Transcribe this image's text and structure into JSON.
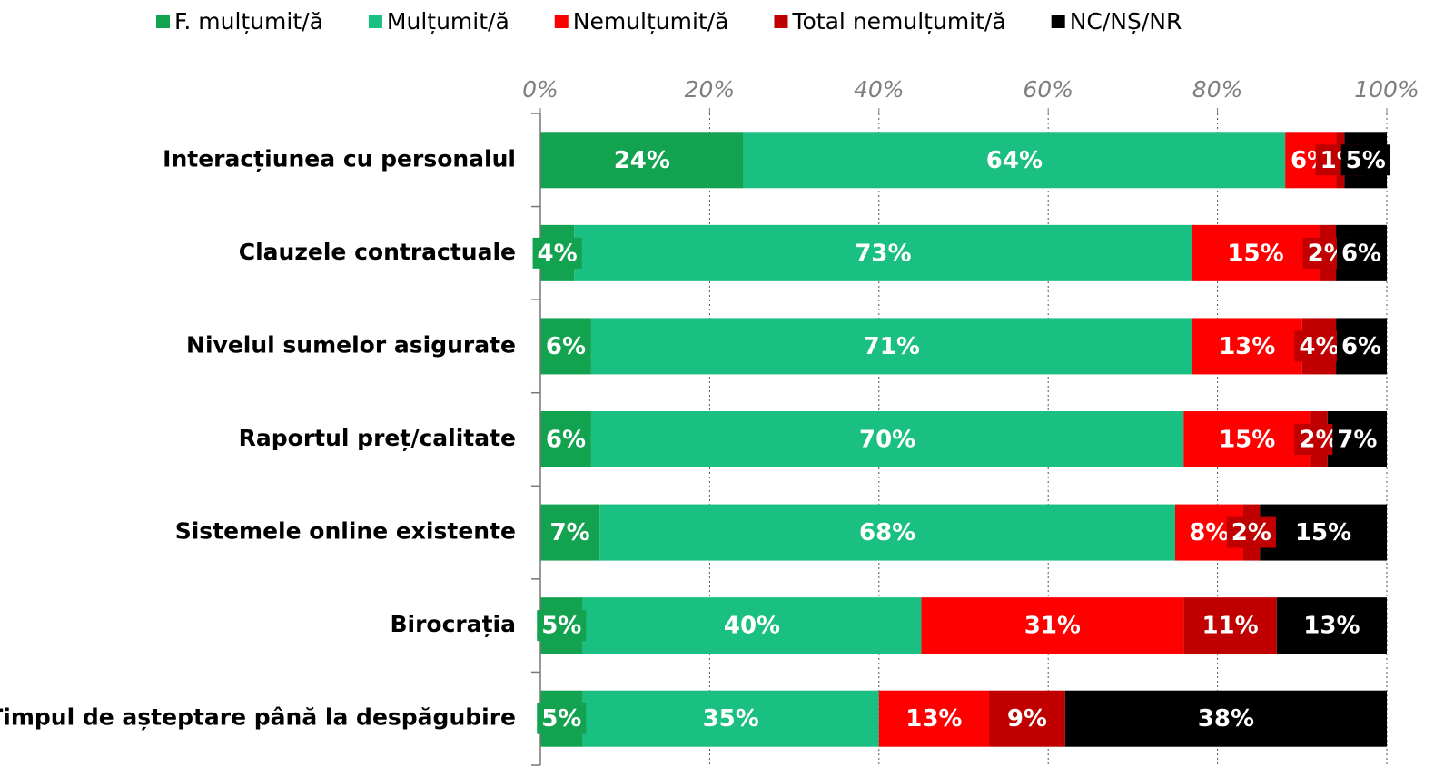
{
  "chart_data": {
    "type": "stacked-bar-horizontal",
    "categories": [
      "Interacțiunea cu personalul",
      "Clauzele contractuale",
      "Nivelul sumelor asigurate",
      "Raportul preț/calitate",
      "Sistemele online existente",
      "Birocrația",
      "Timpul de așteptare până la despăgubire"
    ],
    "series": [
      {
        "name": "F. mulțumit/ă",
        "color": "#13a350",
        "values": [
          24,
          4,
          6,
          6,
          7,
          5,
          5
        ],
        "value_labels": [
          "24%",
          "4%",
          "6%",
          "6%",
          "7%",
          "5%",
          "5%"
        ]
      },
      {
        "name": "Mulțumit/ă",
        "color": "#1abf82",
        "values": [
          64,
          73,
          71,
          70,
          68,
          40,
          35
        ],
        "value_labels": [
          "64%",
          "73%",
          "71%",
          "70%",
          "68%",
          "40%",
          "35%"
        ]
      },
      {
        "name": "Nemulțumit/ă",
        "color": "#ff0000",
        "values": [
          6,
          15,
          13,
          15,
          8,
          31,
          13
        ],
        "value_labels": [
          "6%",
          "15%",
          "13%",
          "15%",
          "8%",
          "31%",
          "13%"
        ]
      },
      {
        "name": "Total nemulțumit/ă",
        "color": "#c00000",
        "values": [
          1,
          2,
          4,
          2,
          2,
          11,
          9
        ],
        "value_labels": [
          "1%",
          "2%",
          "4%",
          "2%",
          "2%",
          "11%",
          "9%"
        ]
      },
      {
        "name": "NC/NȘ/NR",
        "color": "#000000",
        "values": [
          5,
          6,
          6,
          7,
          15,
          13,
          38
        ],
        "value_labels": [
          "5%",
          "6%",
          "6%",
          "7%",
          "15%",
          "13%",
          "38%"
        ]
      }
    ],
    "xlim": [
      0,
      100
    ],
    "xticks": [
      {
        "value": 0,
        "label": "0%"
      },
      {
        "value": 20,
        "label": "20%"
      },
      {
        "value": 40,
        "label": "40%"
      },
      {
        "value": 60,
        "label": "60%"
      },
      {
        "value": 80,
        "label": "80%"
      },
      {
        "value": 100,
        "label": "100%"
      }
    ],
    "grid": true,
    "legend": "top"
  }
}
